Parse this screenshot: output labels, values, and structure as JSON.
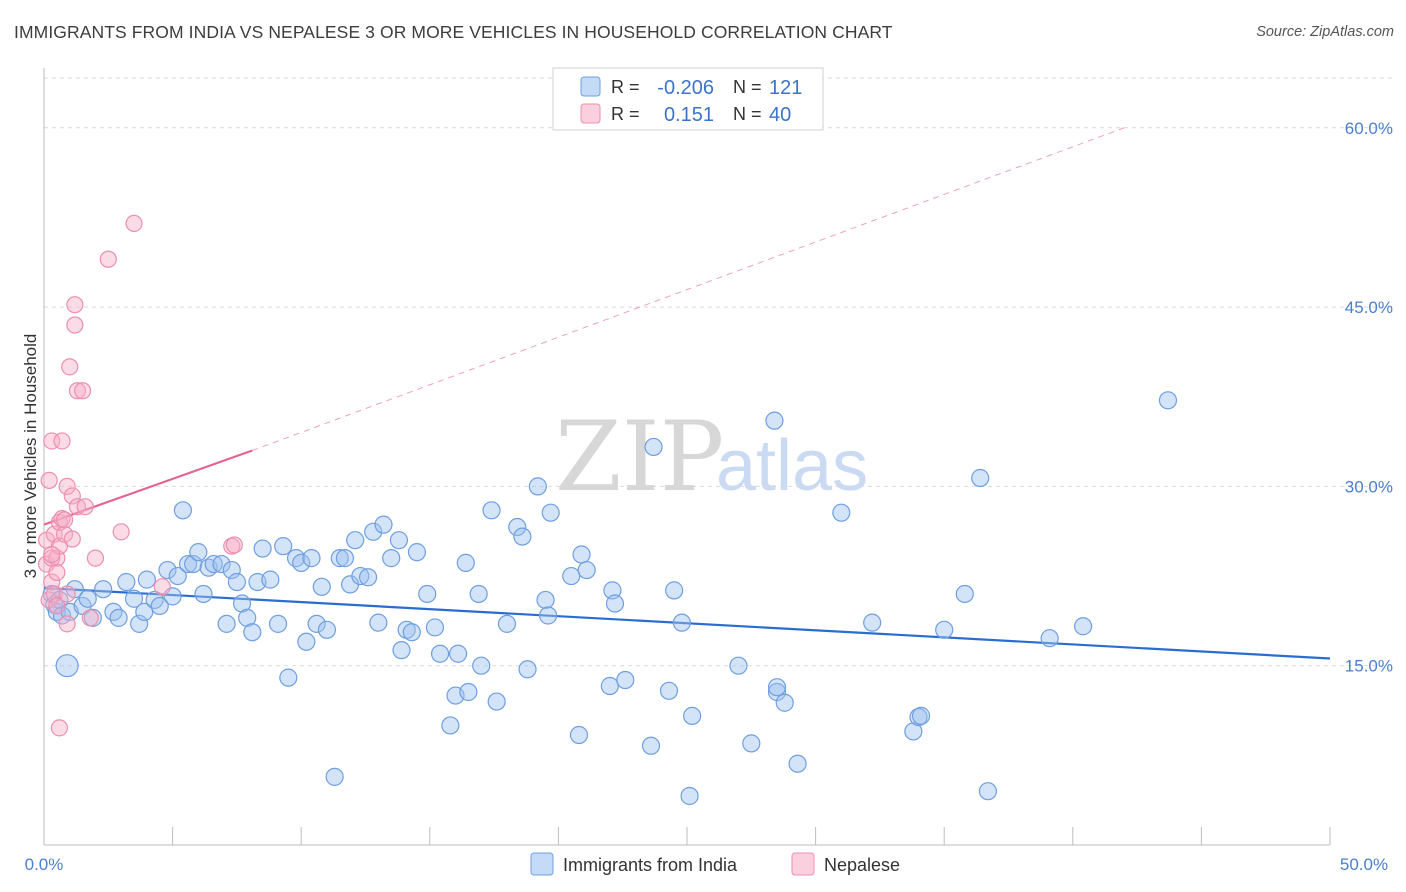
{
  "title": "IMMIGRANTS FROM INDIA VS NEPALESE 3 OR MORE VEHICLES IN HOUSEHOLD CORRELATION CHART",
  "source": "Source: ZipAtlas.com",
  "watermark": {
    "zip": "ZIP",
    "atlas": "atlas"
  },
  "colors": {
    "india_fill": "rgba(157,193,240,0.45)",
    "india_stroke": "#6f9fe0",
    "india_line": "#2a6dd1",
    "nepal_fill": "rgba(246,176,200,0.45)",
    "nepal_stroke": "#ec8fb0",
    "nepal_line": "#e3658f",
    "grid": "#d9d9d9",
    "axis_label": "#4a7fd0"
  },
  "legend": {
    "rows": [
      {
        "r_label": "R =",
        "r_value": "-0.206",
        "n_label": "N =",
        "n_value": "121"
      },
      {
        "r_label": "R =",
        "r_value": "0.151",
        "n_label": "N =",
        "n_value": "40"
      }
    ]
  },
  "chart_data": {
    "type": "scatter",
    "title": "IMMIGRANTS FROM INDIA VS NEPALESE 3 OR MORE VEHICLES IN HOUSEHOLD CORRELATION CHART",
    "xlabel": "",
    "ylabel": "3 or more Vehicles in Household",
    "xlim": [
      0,
      50
    ],
    "ylim": [
      0,
      65
    ],
    "x_tick_labels": [
      "0.0%",
      "50.0%"
    ],
    "y_ticks": [
      15,
      30,
      45,
      60
    ],
    "y_tick_labels": [
      "15.0%",
      "30.0%",
      "45.0%",
      "60.0%"
    ],
    "legend_position": "top-center",
    "series": [
      {
        "name": "Immigrants from India",
        "r": -0.206,
        "n": 121,
        "trend": {
          "x": [
            0,
            50
          ],
          "y": [
            21.5,
            15.6
          ]
        },
        "points": [
          [
            0.3,
            21.0
          ],
          [
            0.4,
            20.1
          ],
          [
            0.5,
            19.5
          ],
          [
            0.6,
            20.5
          ],
          [
            0.7,
            19.2
          ],
          [
            0.9,
            15.0
          ],
          [
            1.0,
            19.5
          ],
          [
            1.2,
            21.4
          ],
          [
            1.5,
            20.0
          ],
          [
            1.7,
            20.6
          ],
          [
            1.9,
            19.0
          ],
          [
            2.3,
            21.4
          ],
          [
            2.7,
            19.5
          ],
          [
            2.9,
            19.0
          ],
          [
            3.2,
            22.0
          ],
          [
            3.5,
            20.6
          ],
          [
            3.7,
            18.5
          ],
          [
            3.9,
            19.5
          ],
          [
            4.0,
            22.2
          ],
          [
            4.3,
            20.5
          ],
          [
            4.5,
            20.0
          ],
          [
            4.8,
            23.0
          ],
          [
            5.0,
            20.8
          ],
          [
            5.2,
            22.5
          ],
          [
            5.4,
            28.0
          ],
          [
            5.6,
            23.5
          ],
          [
            5.8,
            23.5
          ],
          [
            6.0,
            24.5
          ],
          [
            6.2,
            21.0
          ],
          [
            6.4,
            23.2
          ],
          [
            6.6,
            23.5
          ],
          [
            6.9,
            23.5
          ],
          [
            7.1,
            18.5
          ],
          [
            7.3,
            23.0
          ],
          [
            7.5,
            22.0
          ],
          [
            7.7,
            20.2
          ],
          [
            7.9,
            19.0
          ],
          [
            8.1,
            17.8
          ],
          [
            8.3,
            22.0
          ],
          [
            8.5,
            24.8
          ],
          [
            8.8,
            22.2
          ],
          [
            9.1,
            18.5
          ],
          [
            9.3,
            25.0
          ],
          [
            9.5,
            14.0
          ],
          [
            9.8,
            24.0
          ],
          [
            10.0,
            23.6
          ],
          [
            10.2,
            17.0
          ],
          [
            10.4,
            24.0
          ],
          [
            10.6,
            18.5
          ],
          [
            10.8,
            21.6
          ],
          [
            11.0,
            18.0
          ],
          [
            11.3,
            5.7
          ],
          [
            11.5,
            24.0
          ],
          [
            11.7,
            24.0
          ],
          [
            11.9,
            21.8
          ],
          [
            12.1,
            25.5
          ],
          [
            12.3,
            22.5
          ],
          [
            12.6,
            22.4
          ],
          [
            12.8,
            26.2
          ],
          [
            13.0,
            18.6
          ],
          [
            13.2,
            26.8
          ],
          [
            13.5,
            24.0
          ],
          [
            13.8,
            25.5
          ],
          [
            13.9,
            16.3
          ],
          [
            14.1,
            18.0
          ],
          [
            14.3,
            17.8
          ],
          [
            14.5,
            24.5
          ],
          [
            14.9,
            21.0
          ],
          [
            15.2,
            18.2
          ],
          [
            15.4,
            16.0
          ],
          [
            15.8,
            10.0
          ],
          [
            16.0,
            12.5
          ],
          [
            16.1,
            16.0
          ],
          [
            16.4,
            23.6
          ],
          [
            16.5,
            12.8
          ],
          [
            16.9,
            21.0
          ],
          [
            17.0,
            15.0
          ],
          [
            17.4,
            28.0
          ],
          [
            17.6,
            12.0
          ],
          [
            18.0,
            18.5
          ],
          [
            18.4,
            26.6
          ],
          [
            18.6,
            25.8
          ],
          [
            18.8,
            14.7
          ],
          [
            19.2,
            30.0
          ],
          [
            19.5,
            20.5
          ],
          [
            19.6,
            19.2
          ],
          [
            19.7,
            27.8
          ],
          [
            20.5,
            22.5
          ],
          [
            20.8,
            9.2
          ],
          [
            20.9,
            24.3
          ],
          [
            21.1,
            23.0
          ],
          [
            22.0,
            13.3
          ],
          [
            22.1,
            21.3
          ],
          [
            22.2,
            20.2
          ],
          [
            22.6,
            13.8
          ],
          [
            23.6,
            8.3
          ],
          [
            23.7,
            33.3
          ],
          [
            24.3,
            12.9
          ],
          [
            24.5,
            21.3
          ],
          [
            24.8,
            18.6
          ],
          [
            25.1,
            4.1
          ],
          [
            25.2,
            10.8
          ],
          [
            27.0,
            15.0
          ],
          [
            27.5,
            8.5
          ],
          [
            28.4,
            35.5
          ],
          [
            28.5,
            12.8
          ],
          [
            28.5,
            13.2
          ],
          [
            28.8,
            11.9
          ],
          [
            29.3,
            6.8
          ],
          [
            31.0,
            27.8
          ],
          [
            32.2,
            18.6
          ],
          [
            33.8,
            9.5
          ],
          [
            34.0,
            10.7
          ],
          [
            34.1,
            10.8
          ],
          [
            35.0,
            18.0
          ],
          [
            35.8,
            21.0
          ],
          [
            36.4,
            30.7
          ],
          [
            36.7,
            4.5
          ],
          [
            39.1,
            17.3
          ],
          [
            40.4,
            18.3
          ],
          [
            43.7,
            37.2
          ]
        ]
      },
      {
        "name": "Nepalese",
        "r": 0.151,
        "n": 40,
        "trend": {
          "x": [
            0,
            8.1,
            42
          ],
          "y": [
            26.8,
            33.0,
            60.0
          ]
        },
        "points": [
          [
            0.1,
            23.5
          ],
          [
            0.1,
            25.5
          ],
          [
            0.2,
            20.5
          ],
          [
            0.2,
            30.5
          ],
          [
            0.3,
            33.8
          ],
          [
            0.3,
            24.0
          ],
          [
            0.3,
            22.0
          ],
          [
            0.4,
            21.0
          ],
          [
            0.4,
            26.0
          ],
          [
            0.5,
            24.0
          ],
          [
            0.5,
            22.8
          ],
          [
            0.6,
            9.8
          ],
          [
            0.6,
            27.0
          ],
          [
            0.6,
            25.0
          ],
          [
            0.7,
            33.8
          ],
          [
            0.7,
            27.3
          ],
          [
            0.8,
            26.0
          ],
          [
            0.8,
            27.2
          ],
          [
            0.9,
            30.0
          ],
          [
            0.9,
            18.5
          ],
          [
            1.0,
            40.0
          ],
          [
            1.1,
            29.2
          ],
          [
            1.1,
            25.6
          ],
          [
            1.2,
            45.2
          ],
          [
            1.2,
            43.5
          ],
          [
            1.3,
            38.0
          ],
          [
            1.3,
            28.3
          ],
          [
            1.5,
            38.0
          ],
          [
            1.6,
            28.3
          ],
          [
            1.8,
            19.0
          ],
          [
            2.0,
            24.0
          ],
          [
            2.5,
            49.0
          ],
          [
            3.0,
            26.2
          ],
          [
            3.5,
            52.0
          ],
          [
            4.6,
            21.6
          ],
          [
            7.3,
            25.0
          ],
          [
            7.4,
            25.1
          ],
          [
            0.3,
            24.3
          ],
          [
            0.5,
            20.0
          ],
          [
            0.9,
            21.0
          ]
        ]
      }
    ]
  },
  "bottom_legend": [
    {
      "label": "Immigrants from India"
    },
    {
      "label": "Nepalese"
    }
  ]
}
